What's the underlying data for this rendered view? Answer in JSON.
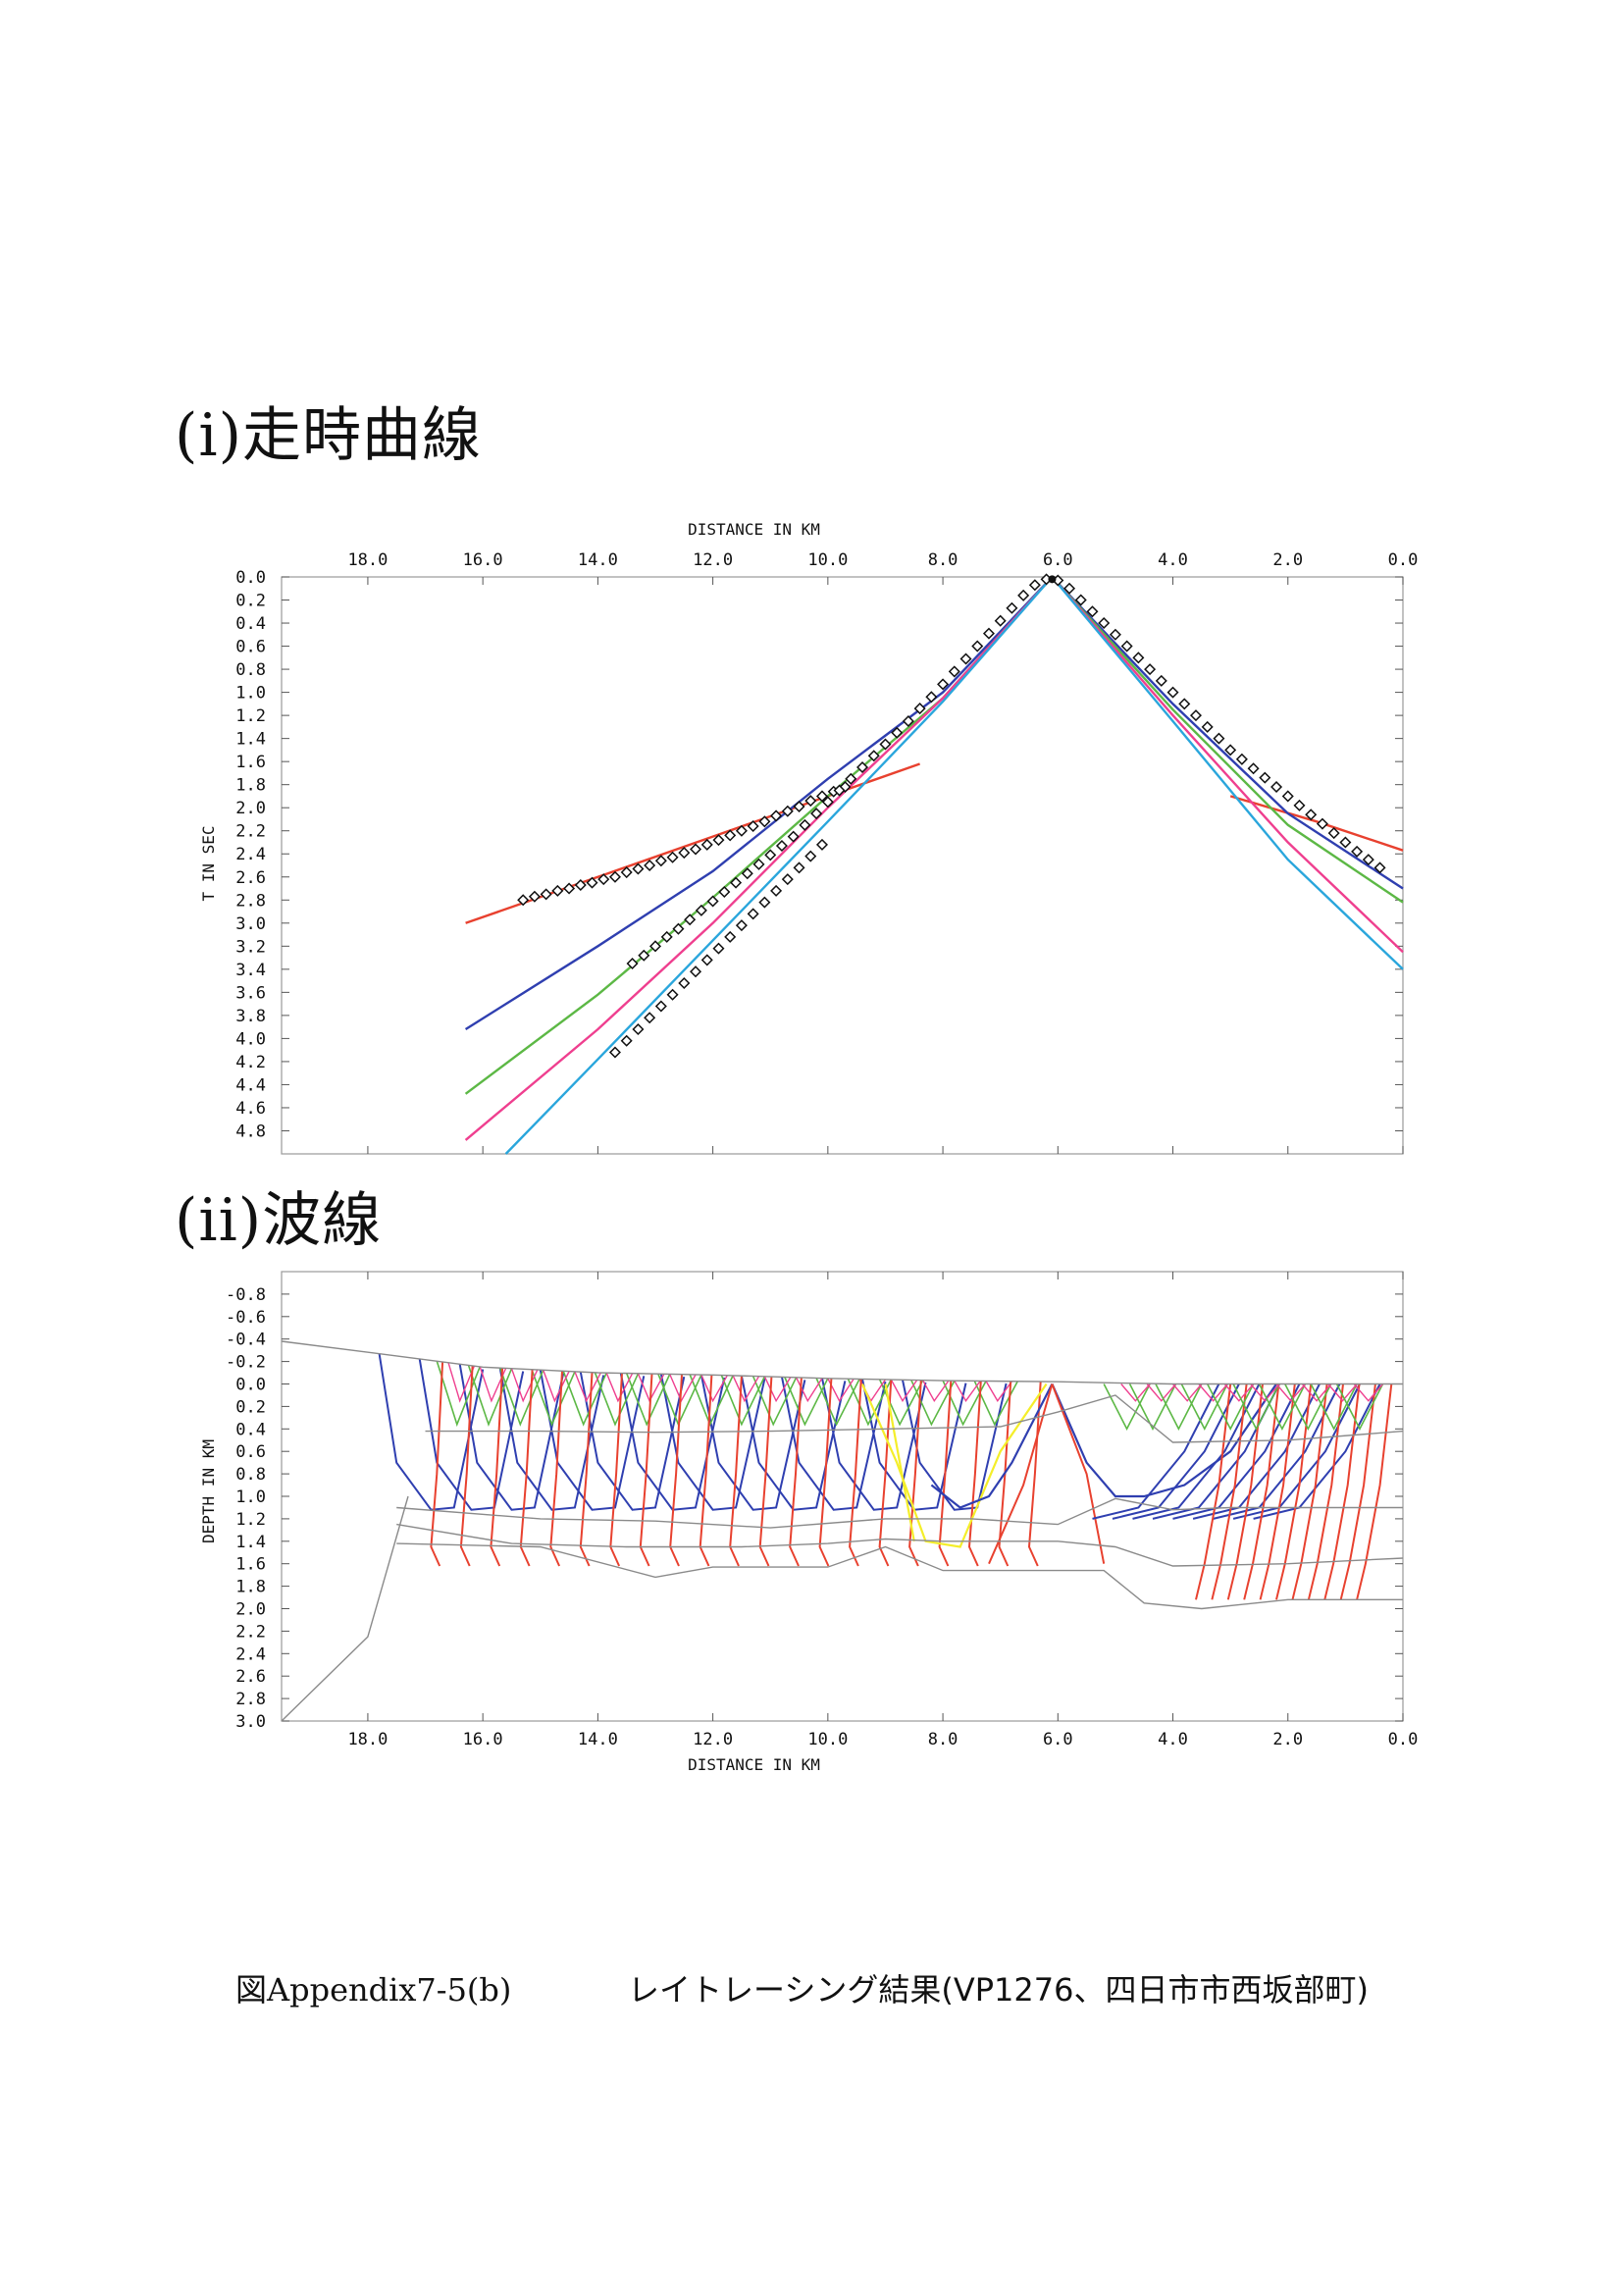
{
  "sections": {
    "travel_time_title": "(i)走時曲線",
    "ray_title": "(ii)波線"
  },
  "caption": {
    "label": "図Appendix7-5(b)",
    "text": "レイトレーシング結果(VP1276、四日市市西坂部町)"
  },
  "colors": {
    "red": "#e8412f",
    "blue": "#2f3fb0",
    "green": "#5cb845",
    "magenta": "#ef3f8f",
    "cyan": "#2aa6dc",
    "yellow": "#f4ee2a",
    "gray": "#8a8a8a",
    "frame": "#999999"
  },
  "chart_data": [
    {
      "type": "line",
      "title": "",
      "xlabel": "DISTANCE IN KM",
      "ylabel": "T IN SEC",
      "x_axis": "top, reversed",
      "xlim": [
        19.5,
        0.0
      ],
      "ylim": [
        0.0,
        5.0
      ],
      "y_inverted": true,
      "x_ticks": [
        "18.0",
        "16.0",
        "14.0",
        "12.0",
        "10.0",
        "8.0",
        "6.0",
        "4.0",
        "2.0",
        "0.0"
      ],
      "y_ticks": [
        "0.0",
        "0.2",
        "0.4",
        "0.6",
        "0.8",
        "1.0",
        "1.2",
        "1.4",
        "1.6",
        "1.8",
        "2.0",
        "2.2",
        "2.4",
        "2.6",
        "2.8",
        "3.0",
        "3.2",
        "3.4",
        "3.6",
        "3.8",
        "4.0",
        "4.2",
        "4.4",
        "4.6",
        "4.8"
      ],
      "source_x": 6.1,
      "series": [
        {
          "color": "red",
          "x": [
            16.3,
            14.0,
            12.0,
            10.0,
            8.4
          ],
          "y": [
            3.0,
            2.6,
            2.25,
            1.9,
            1.62
          ]
        },
        {
          "color": "red",
          "x": [
            3.0,
            1.5,
            0.0
          ],
          "y": [
            1.9,
            2.12,
            2.37
          ]
        },
        {
          "color": "blue",
          "x": [
            16.3,
            14.0,
            12.0,
            10.0,
            8.0,
            6.1
          ],
          "y": [
            3.92,
            3.2,
            2.55,
            1.75,
            1.0,
            0.0
          ]
        },
        {
          "color": "blue",
          "x": [
            6.1,
            4.0,
            2.0,
            0.0
          ],
          "y": [
            0.0,
            1.1,
            2.05,
            2.7
          ]
        },
        {
          "color": "green",
          "x": [
            16.3,
            14.0,
            12.0,
            10.0,
            8.0,
            6.1
          ],
          "y": [
            4.48,
            3.62,
            2.78,
            1.9,
            1.05,
            0.0
          ]
        },
        {
          "color": "green",
          "x": [
            6.1,
            4.0,
            2.0,
            0.0
          ],
          "y": [
            0.0,
            1.15,
            2.15,
            2.82
          ]
        },
        {
          "color": "magenta",
          "x": [
            16.3,
            14.0,
            12.0,
            10.0,
            8.0,
            6.1
          ],
          "y": [
            4.88,
            3.92,
            3.0,
            2.0,
            1.05,
            0.0
          ]
        },
        {
          "color": "magenta",
          "x": [
            6.1,
            4.0,
            2.0,
            0.0
          ],
          "y": [
            0.0,
            1.2,
            2.3,
            3.25
          ]
        },
        {
          "color": "cyan",
          "x": [
            15.6,
            14.0,
            12.0,
            10.0,
            8.0,
            6.1
          ],
          "y": [
            5.0,
            4.18,
            3.15,
            2.12,
            1.08,
            0.0
          ]
        },
        {
          "color": "cyan",
          "x": [
            6.1,
            4.0,
            2.0,
            0.0
          ],
          "y": [
            0.0,
            1.25,
            2.45,
            3.4
          ]
        }
      ],
      "observed": [
        {
          "x": [
            15.3,
            15.1,
            14.9,
            14.7,
            14.5,
            14.3,
            14.1,
            13.9,
            13.7,
            13.5,
            13.3,
            13.1,
            12.9,
            12.7,
            12.5,
            12.3,
            12.1,
            11.9,
            11.7,
            11.5,
            11.3,
            11.1,
            10.9,
            10.7,
            10.5,
            10.3,
            10.1,
            9.9,
            9.7
          ],
          "y": [
            2.8,
            2.77,
            2.75,
            2.72,
            2.7,
            2.67,
            2.65,
            2.62,
            2.6,
            2.56,
            2.53,
            2.5,
            2.46,
            2.43,
            2.39,
            2.36,
            2.32,
            2.28,
            2.24,
            2.2,
            2.16,
            2.12,
            2.07,
            2.03,
            1.99,
            1.94,
            1.9,
            1.86,
            1.82
          ]
        },
        {
          "x": [
            13.4,
            13.2,
            13.0,
            12.8,
            12.6,
            12.4,
            12.2,
            12.0,
            11.8,
            11.6,
            11.4,
            11.2,
            11.0,
            10.8,
            10.6,
            10.4,
            10.2,
            10.0,
            9.8,
            9.6,
            9.4,
            9.2,
            9.0,
            8.8,
            8.6,
            8.4,
            8.2,
            8.0,
            7.8,
            7.6,
            7.4,
            7.2,
            7.0,
            6.8,
            6.6,
            6.4,
            6.2
          ],
          "y": [
            3.35,
            3.28,
            3.2,
            3.12,
            3.05,
            2.97,
            2.89,
            2.81,
            2.73,
            2.65,
            2.57,
            2.49,
            2.41,
            2.33,
            2.25,
            2.15,
            2.05,
            1.95,
            1.85,
            1.75,
            1.65,
            1.55,
            1.45,
            1.35,
            1.25,
            1.14,
            1.04,
            0.93,
            0.82,
            0.71,
            0.6,
            0.49,
            0.38,
            0.27,
            0.16,
            0.07,
            0.02
          ]
        },
        {
          "x": [
            13.7,
            13.5,
            13.3,
            13.1,
            12.9,
            12.7,
            12.5,
            12.3,
            12.1,
            11.9,
            11.7,
            11.5,
            11.3,
            11.1,
            10.9,
            10.7,
            10.5,
            10.3,
            10.1
          ],
          "y": [
            4.12,
            4.02,
            3.92,
            3.82,
            3.72,
            3.62,
            3.52,
            3.42,
            3.32,
            3.22,
            3.12,
            3.02,
            2.92,
            2.82,
            2.72,
            2.62,
            2.52,
            2.42,
            2.32
          ]
        },
        {
          "x": [
            6.0,
            5.8,
            5.6,
            5.4,
            5.2,
            5.0,
            4.8,
            4.6,
            4.4,
            4.2,
            4.0,
            3.8,
            3.6,
            3.4,
            3.2,
            3.0,
            2.8,
            2.6,
            2.4,
            2.2,
            2.0,
            1.8,
            1.6,
            1.4,
            1.2,
            1.0,
            0.8,
            0.6,
            0.4
          ],
          "y": [
            0.03,
            0.1,
            0.2,
            0.3,
            0.4,
            0.5,
            0.6,
            0.7,
            0.8,
            0.9,
            1.0,
            1.1,
            1.2,
            1.3,
            1.4,
            1.5,
            1.58,
            1.66,
            1.74,
            1.82,
            1.9,
            1.98,
            2.06,
            2.14,
            2.22,
            2.3,
            2.38,
            2.45,
            2.52
          ]
        }
      ]
    },
    {
      "type": "line",
      "title": "",
      "xlabel": "DISTANCE IN KM",
      "ylabel": "DEPTH IN KM",
      "x_axis": "bottom, reversed",
      "xlim": [
        19.5,
        0.0
      ],
      "ylim": [
        -1.0,
        3.0
      ],
      "y_inverted": true,
      "x_ticks": [
        "18.0",
        "16.0",
        "14.0",
        "12.0",
        "10.0",
        "8.0",
        "6.0",
        "4.0",
        "2.0",
        "0.0"
      ],
      "y_ticks": [
        "-0.8",
        "-0.6",
        "-0.4",
        "-0.2",
        "0.0",
        "0.2",
        "0.4",
        "0.6",
        "0.8",
        "1.0",
        "1.2",
        "1.4",
        "1.6",
        "1.8",
        "2.0",
        "2.2",
        "2.4",
        "2.6",
        "2.8",
        "3.0"
      ],
      "source_x": 6.1,
      "boundaries": [
        {
          "x": [
            19.5,
            17.5,
            16.0,
            14.0,
            12.0,
            10.0,
            8.0,
            6.0,
            5.0,
            4.0,
            2.0,
            0.0
          ],
          "y": [
            -0.38,
            -0.25,
            -0.15,
            -0.1,
            -0.08,
            -0.05,
            -0.03,
            -0.02,
            -0.01,
            0.0,
            0.0,
            0.0
          ]
        },
        {
          "x": [
            17.0,
            15.0,
            13.0,
            11.0,
            9.0,
            7.0,
            6.0,
            5.0,
            4.0,
            2.0,
            0.0
          ],
          "y": [
            0.42,
            0.42,
            0.43,
            0.42,
            0.4,
            0.38,
            0.25,
            0.1,
            0.52,
            0.5,
            0.42
          ]
        },
        {
          "x": [
            17.5,
            15.0,
            13.0,
            11.0,
            9.0,
            7.5,
            6.0,
            5.0,
            4.0,
            3.0,
            0.0
          ],
          "y": [
            1.1,
            1.2,
            1.22,
            1.28,
            1.2,
            1.2,
            1.25,
            1.02,
            1.12,
            1.1,
            1.1
          ]
        },
        {
          "x": [
            17.5,
            15.5,
            13.5,
            11.5,
            10.0,
            9.0,
            8.0,
            6.0,
            5.0,
            4.0,
            2.0,
            0.0
          ],
          "y": [
            1.25,
            1.42,
            1.45,
            1.45,
            1.42,
            1.38,
            1.4,
            1.4,
            1.45,
            1.62,
            1.6,
            1.55
          ]
        },
        {
          "x": [
            17.5,
            15.0,
            13.0,
            12.0,
            10.0,
            9.0,
            8.0,
            6.0,
            5.2,
            4.5,
            3.5,
            2.0,
            0.0
          ],
          "y": [
            1.42,
            1.45,
            1.72,
            1.63,
            1.63,
            1.45,
            1.66,
            1.66,
            1.66,
            1.95,
            2.0,
            1.92,
            1.92
          ]
        },
        {
          "x": [
            19.5,
            18.0,
            17.3
          ],
          "y": [
            3.0,
            2.25,
            1.0
          ]
        }
      ]
    }
  ]
}
